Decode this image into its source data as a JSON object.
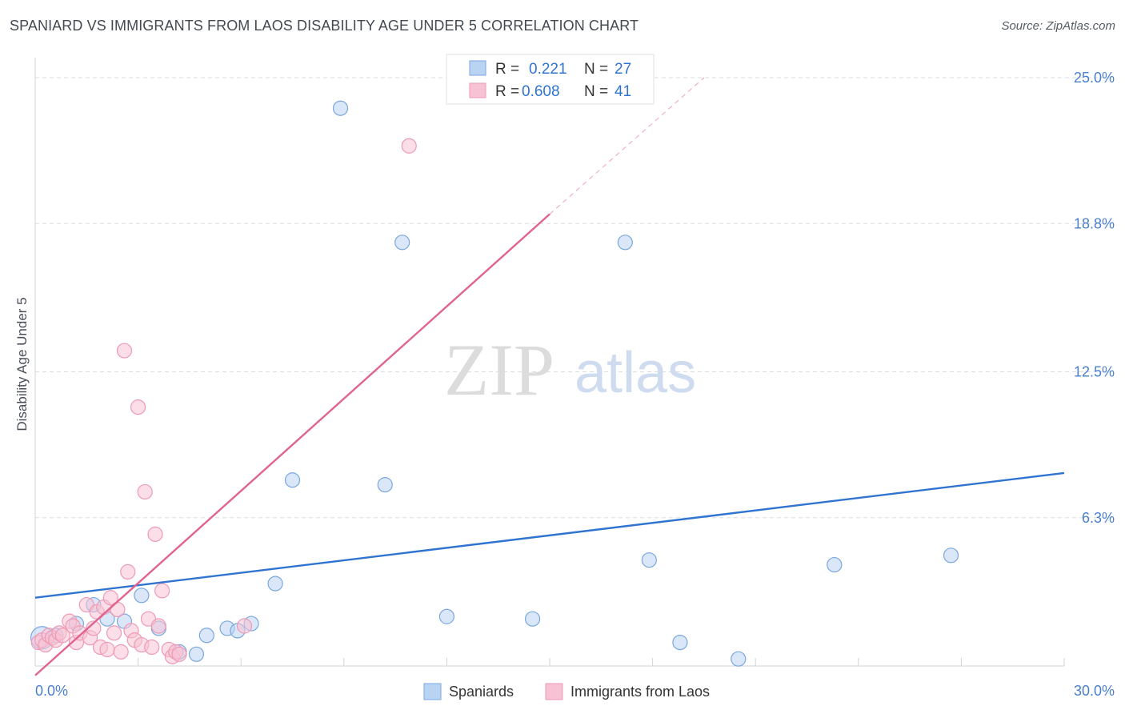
{
  "title": "SPANIARD VS IMMIGRANTS FROM LAOS DISABILITY AGE UNDER 5 CORRELATION CHART",
  "source": "Source: ZipAtlas.com",
  "watermark": {
    "zip": "ZIP",
    "atlas": "atlas"
  },
  "legend_top": {
    "items": [
      {
        "r_label": "R =",
        "r_value": "0.221",
        "n_label": "N =",
        "n_value": "27"
      },
      {
        "r_label": "R =",
        "r_value": "0.608",
        "n_label": "N =",
        "n_value": "41"
      }
    ]
  },
  "legend_bottom": {
    "items": [
      "Spaniards",
      "Immigrants from Laos"
    ]
  },
  "colors": {
    "blue_fill": "#b9d3f3",
    "blue_stroke": "#7aa7df",
    "blue_line": "#2f74d0",
    "pink_fill": "#f7c2d3",
    "pink_stroke": "#ee9ab4",
    "pink_line": "#e0648f",
    "axis_text": "#4a7fcf",
    "grid": "#d9dde3"
  },
  "chart_data": {
    "type": "scatter",
    "title": "SPANIARD VS IMMIGRANTS FROM LAOS DISABILITY AGE UNDER 5 CORRELATION CHART",
    "xlabel": "",
    "ylabel": "Disability Age Under 5",
    "xlim": [
      0,
      30
    ],
    "ylim": [
      0,
      25
    ],
    "x_tick_labels": [
      "0.0%",
      "30.0%"
    ],
    "y_ticks": [
      6.3,
      12.5,
      18.8,
      25.0
    ],
    "y_tick_labels": [
      "6.3%",
      "12.5%",
      "18.8%",
      "25.0%"
    ],
    "series": [
      {
        "name": "Spaniards",
        "r": 0.221,
        "n": 27,
        "points": [
          [
            0.2,
            1.2
          ],
          [
            0.6,
            1.3
          ],
          [
            1.2,
            1.8
          ],
          [
            1.7,
            2.6
          ],
          [
            2.1,
            2.0
          ],
          [
            2.6,
            1.9
          ],
          [
            3.1,
            3.0
          ],
          [
            3.6,
            1.6
          ],
          [
            4.2,
            0.6
          ],
          [
            4.7,
            0.5
          ],
          [
            5.0,
            1.3
          ],
          [
            5.6,
            1.6
          ],
          [
            5.9,
            1.5
          ],
          [
            6.3,
            1.8
          ],
          [
            7.0,
            3.5
          ],
          [
            7.5,
            7.9
          ],
          [
            8.9,
            23.7
          ],
          [
            10.2,
            7.7
          ],
          [
            10.7,
            18.0
          ],
          [
            12.0,
            2.1
          ],
          [
            14.5,
            2.0
          ],
          [
            17.2,
            18.0
          ],
          [
            17.9,
            4.5
          ],
          [
            18.8,
            1.0
          ],
          [
            20.5,
            0.3
          ],
          [
            23.3,
            4.3
          ],
          [
            26.7,
            4.7
          ]
        ],
        "trend": {
          "x": [
            0,
            30
          ],
          "y": [
            2.9,
            8.2
          ]
        }
      },
      {
        "name": "Immigrants from Laos",
        "r": 0.608,
        "n": 41,
        "points": [
          [
            0.1,
            1.0
          ],
          [
            0.2,
            1.1
          ],
          [
            0.3,
            0.9
          ],
          [
            0.4,
            1.3
          ],
          [
            0.5,
            1.2
          ],
          [
            0.6,
            1.1
          ],
          [
            0.7,
            1.4
          ],
          [
            0.8,
            1.3
          ],
          [
            1.0,
            1.9
          ],
          [
            1.1,
            1.7
          ],
          [
            1.2,
            1.0
          ],
          [
            1.3,
            1.4
          ],
          [
            1.5,
            2.6
          ],
          [
            1.6,
            1.2
          ],
          [
            1.7,
            1.6
          ],
          [
            1.8,
            2.3
          ],
          [
            1.9,
            0.8
          ],
          [
            2.0,
            2.5
          ],
          [
            2.1,
            0.7
          ],
          [
            2.2,
            2.9
          ],
          [
            2.3,
            1.4
          ],
          [
            2.4,
            2.4
          ],
          [
            2.5,
            0.6
          ],
          [
            2.6,
            13.4
          ],
          [
            2.7,
            4.0
          ],
          [
            2.8,
            1.5
          ],
          [
            2.9,
            1.1
          ],
          [
            3.0,
            11.0
          ],
          [
            3.1,
            0.9
          ],
          [
            3.2,
            7.4
          ],
          [
            3.3,
            2.0
          ],
          [
            3.4,
            0.8
          ],
          [
            3.5,
            5.6
          ],
          [
            3.6,
            1.7
          ],
          [
            3.7,
            3.2
          ],
          [
            3.9,
            0.7
          ],
          [
            4.0,
            0.4
          ],
          [
            4.1,
            0.6
          ],
          [
            4.2,
            0.5
          ],
          [
            6.1,
            1.7
          ],
          [
            10.9,
            22.1
          ]
        ],
        "trend": {
          "x": [
            0,
            15
          ],
          "y": [
            -0.4,
            19.2
          ]
        },
        "trend_dashed": {
          "x": [
            15,
            19.5
          ],
          "y": [
            19.2,
            25.0
          ]
        }
      }
    ]
  }
}
